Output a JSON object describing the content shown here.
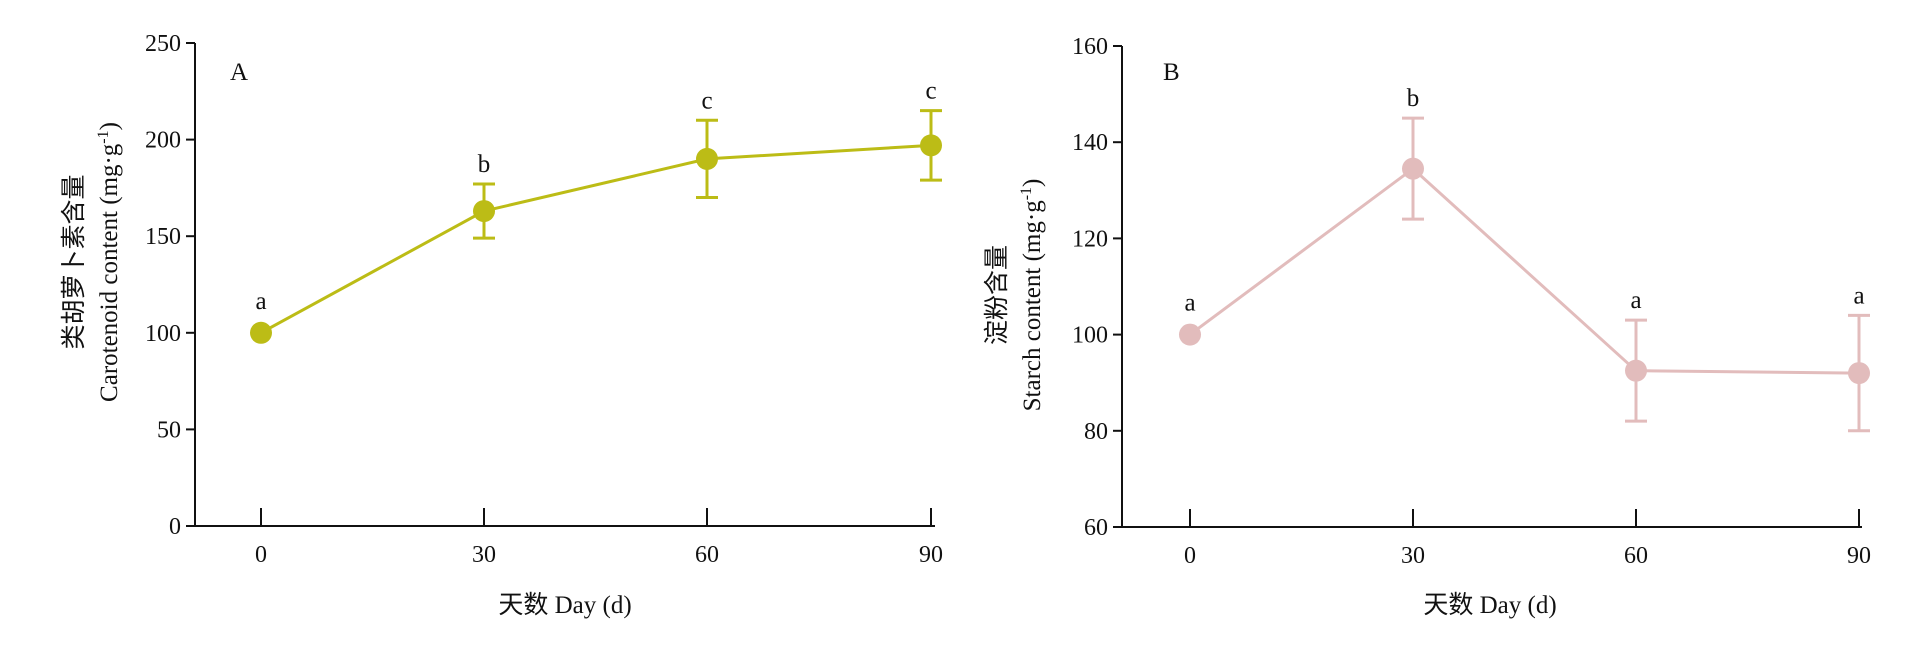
{
  "chart_data": [
    {
      "type": "line",
      "panel_label": "A",
      "x": [
        0,
        30,
        60,
        90
      ],
      "x_tick_labels": [
        "0",
        "30",
        "60",
        "90"
      ],
      "xlabel": "天数 Day (d)",
      "ylabel_cn": "类胡萝卜素含量",
      "ylabel_en": "Carotenoid content (mg·g",
      "ylabel_sup": "-1",
      "ylabel_close": ")",
      "ylim": [
        0,
        250
      ],
      "y_ticks": [
        0,
        50,
        100,
        150,
        200,
        250
      ],
      "y_tick_labels": [
        "0",
        "50",
        "100",
        "150",
        "200",
        "250"
      ],
      "grid": false,
      "color": "#bcbc16",
      "series": [
        {
          "values": [
            100,
            163,
            190,
            197
          ],
          "error": [
            0,
            14,
            20,
            18
          ],
          "significance": [
            "a",
            "b",
            "c",
            "c"
          ]
        }
      ]
    },
    {
      "type": "line",
      "panel_label": "B",
      "x": [
        0,
        30,
        60,
        90
      ],
      "x_tick_labels": [
        "0",
        "30",
        "60",
        "90"
      ],
      "xlabel": "天数 Day (d)",
      "ylabel_cn": "淀粉含量",
      "ylabel_en": "Starch content (mg·g",
      "ylabel_sup": "-1",
      "ylabel_close": ")",
      "ylim": [
        60,
        160
      ],
      "y_ticks": [
        60,
        80,
        100,
        120,
        140,
        160
      ],
      "y_tick_labels": [
        "60",
        "80",
        "100",
        "120",
        "140",
        "160"
      ],
      "grid": false,
      "color": "#e2bcbc",
      "series": [
        {
          "values": [
            100,
            134.5,
            92.5,
            92
          ],
          "error": [
            0,
            10.5,
            10.5,
            12
          ],
          "significance": [
            "a",
            "b",
            "a",
            "a"
          ]
        }
      ]
    }
  ]
}
